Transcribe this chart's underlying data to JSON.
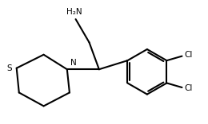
{
  "bg_color": "#ffffff",
  "line_color": "#000000",
  "line_width": 1.5,
  "text_color": "#000000",
  "label_nh2": "H₂N",
  "label_n": "N",
  "label_s": "S",
  "label_cl1": "Cl",
  "label_cl2": "Cl",
  "figsize": [
    2.6,
    1.56
  ],
  "dpi": 100
}
